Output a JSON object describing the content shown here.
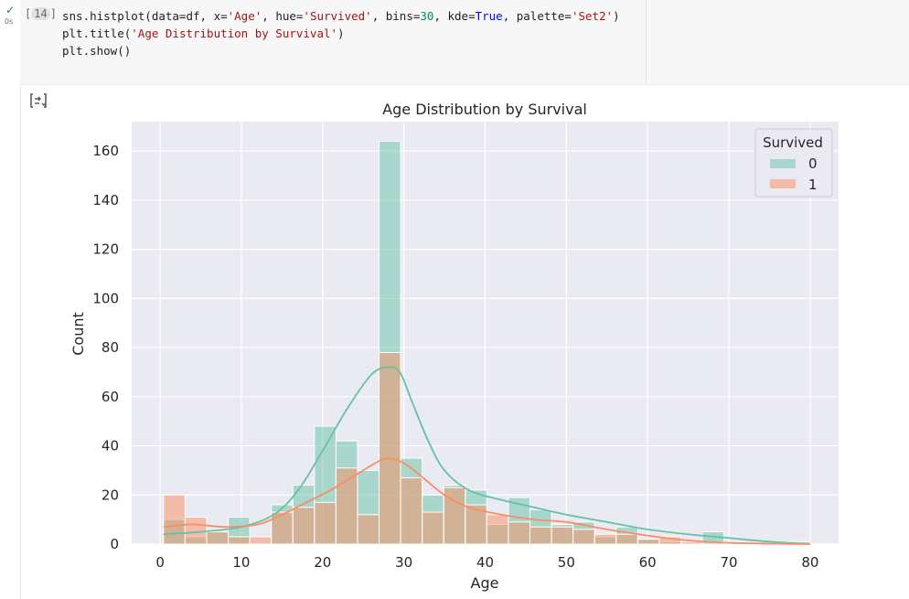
{
  "cell": {
    "status_icon": "check-icon",
    "run_time": "0s",
    "execution_count": "14",
    "output_icon": "output-toggle-icon"
  },
  "chart_data": {
    "type": "histogram",
    "title": "Age Distribution by Survival",
    "xlabel": "Age",
    "ylabel": "Count",
    "xlim": [
      -3.5,
      83.5
    ],
    "ylim": [
      0,
      172
    ],
    "xticks": [
      "0",
      "10",
      "20",
      "30",
      "40",
      "50",
      "60",
      "70",
      "80"
    ],
    "yticks": [
      "0",
      "20",
      "40",
      "60",
      "80",
      "100",
      "120",
      "140",
      "160"
    ],
    "grid": true,
    "legend": {
      "title": "Survived",
      "position": "top-right",
      "entries": [
        "0",
        "1"
      ]
    },
    "bins": 30,
    "bin_start": 0.42,
    "bin_end": 80.0,
    "series": [
      {
        "name": "0",
        "color": "#66c2a5",
        "counts": [
          10,
          3,
          5,
          11,
          0,
          16,
          24,
          48,
          42,
          30,
          164,
          35,
          20,
          24,
          22,
          8,
          19,
          14,
          8,
          9,
          3,
          7,
          2,
          1,
          0,
          5,
          0,
          0,
          0,
          1
        ],
        "kde": [
          [
            0.4,
            4
          ],
          [
            5,
            5
          ],
          [
            10,
            7
          ],
          [
            14,
            12
          ],
          [
            17,
            22
          ],
          [
            20,
            38
          ],
          [
            23,
            55
          ],
          [
            26,
            69
          ],
          [
            28,
            72
          ],
          [
            29.5,
            70
          ],
          [
            31,
            58
          ],
          [
            33,
            42
          ],
          [
            35,
            30
          ],
          [
            38,
            22
          ],
          [
            42,
            18
          ],
          [
            46,
            15
          ],
          [
            50,
            12
          ],
          [
            55,
            9
          ],
          [
            60,
            6
          ],
          [
            65,
            4
          ],
          [
            70,
            2.5
          ],
          [
            75,
            1
          ],
          [
            80,
            0
          ]
        ]
      },
      {
        "name": "1",
        "color": "#fc8d62",
        "counts": [
          20,
          11,
          5,
          3,
          3,
          13,
          15,
          17,
          31,
          12,
          78,
          27,
          13,
          23,
          16,
          12,
          9,
          7,
          7,
          6,
          4,
          4,
          2,
          3,
          1,
          0,
          0,
          0,
          0,
          0
        ],
        "kde": [
          [
            0.4,
            7
          ],
          [
            4,
            8
          ],
          [
            8,
            7
          ],
          [
            12,
            8
          ],
          [
            15,
            12
          ],
          [
            18,
            17
          ],
          [
            21,
            22
          ],
          [
            24,
            28
          ],
          [
            26.5,
            33
          ],
          [
            28,
            35
          ],
          [
            30,
            33
          ],
          [
            32,
            28
          ],
          [
            35,
            20
          ],
          [
            38,
            15
          ],
          [
            42,
            12
          ],
          [
            46,
            10
          ],
          [
            50,
            9
          ],
          [
            55,
            6
          ],
          [
            60,
            3.5
          ],
          [
            65,
            1.5
          ],
          [
            70,
            0.5
          ],
          [
            75,
            0.2
          ],
          [
            80,
            0
          ]
        ]
      }
    ]
  }
}
